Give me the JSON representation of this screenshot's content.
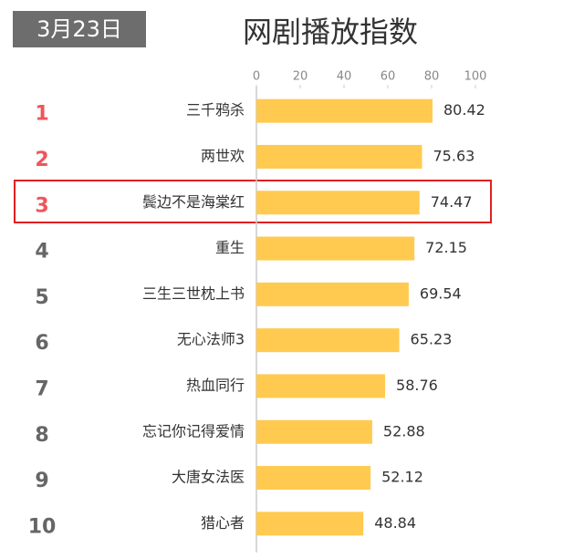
{
  "chart_data": {
    "type": "bar",
    "orientation": "horizontal",
    "title": "网剧播放指数",
    "date": "3月23日",
    "ranks": [
      "1",
      "2",
      "3",
      "4",
      "5",
      "6",
      "7",
      "8",
      "9",
      "10"
    ],
    "rank_colors": [
      "#f0555a",
      "#f0555a",
      "#f0555a",
      "#666666",
      "#666666",
      "#666666",
      "#666666",
      "#666666",
      "#666666",
      "#666666"
    ],
    "categories": [
      "三千鸦杀",
      "两世欢",
      "鬓边不是海棠红",
      "重生",
      "三生三世枕上书",
      "无心法师3",
      "热血同行",
      "忘记你记得爱情",
      "大唐女法医",
      "猎心者"
    ],
    "values": [
      80.42,
      75.63,
      74.47,
      72.15,
      69.54,
      65.23,
      58.76,
      52.88,
      52.12,
      48.84
    ],
    "color": "#ffca4f",
    "xlim": [
      0,
      100
    ],
    "xticks": [
      0,
      20,
      40,
      60,
      80,
      100
    ]
  }
}
